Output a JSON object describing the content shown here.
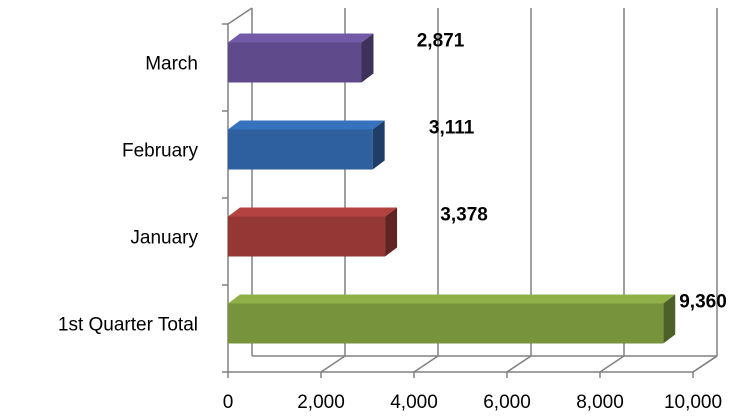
{
  "chart_data": {
    "type": "bar",
    "orientation": "horizontal",
    "style": "3d",
    "categories": [
      "1st Quarter Total",
      "January",
      "February",
      "March"
    ],
    "values": [
      9360,
      3378,
      3111,
      2871
    ],
    "value_labels": [
      "9,360",
      "3,378",
      "3,111",
      "2,871"
    ],
    "colors": [
      "#77933C",
      "#953735",
      "#2E5F9E",
      "#5F4B8B"
    ],
    "xlim": [
      0,
      10000
    ],
    "x_ticks": [
      0,
      2000,
      4000,
      6000,
      8000,
      10000
    ],
    "x_tick_labels": [
      "0",
      "2,000",
      "4,000",
      "6,000",
      "8,000",
      "10,000"
    ],
    "grid": "vertical",
    "legend": "none"
  }
}
